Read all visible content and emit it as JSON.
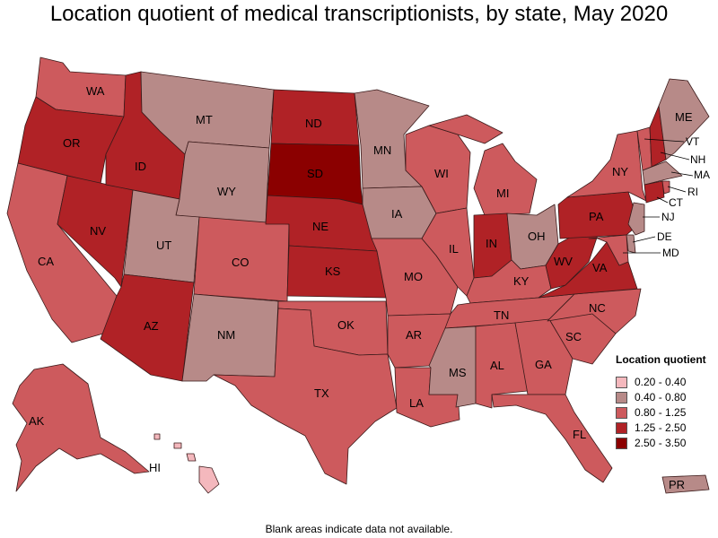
{
  "title": "Location quotient of medical transcriptionists, by state, May 2020",
  "footnote": "Blank areas indicate data not available.",
  "colors": {
    "c1": "#f4b8bd",
    "c2": "#b78a88",
    "c3": "#cd5a5d",
    "c4": "#b02226",
    "c5": "#8b0000"
  },
  "legend": {
    "title": "Location quotient",
    "bins": [
      {
        "label": "0.20 - 0.40",
        "color": "#f4b8bd"
      },
      {
        "label": "0.40 - 0.80",
        "color": "#b78a88"
      },
      {
        "label": "0.80 - 1.25",
        "color": "#cd5a5d"
      },
      {
        "label": "1.25 - 2.50",
        "color": "#b02226"
      },
      {
        "label": "2.50 - 3.50",
        "color": "#8b0000"
      }
    ]
  },
  "states": {
    "WA": {
      "label": "WA",
      "bin": "0.80 - 1.25"
    },
    "OR": {
      "label": "OR",
      "bin": "1.25 - 2.50"
    },
    "CA": {
      "label": "CA",
      "bin": "0.80 - 1.25"
    },
    "NV": {
      "label": "NV",
      "bin": "1.25 - 2.50"
    },
    "ID": {
      "label": "ID",
      "bin": "1.25 - 2.50"
    },
    "MT": {
      "label": "MT",
      "bin": "0.40 - 0.80"
    },
    "WY": {
      "label": "WY",
      "bin": "0.40 - 0.80"
    },
    "UT": {
      "label": "UT",
      "bin": "0.40 - 0.80"
    },
    "AZ": {
      "label": "AZ",
      "bin": "1.25 - 2.50"
    },
    "CO": {
      "label": "CO",
      "bin": "0.80 - 1.25"
    },
    "NM": {
      "label": "NM",
      "bin": "0.40 - 0.80"
    },
    "ND": {
      "label": "ND",
      "bin": "1.25 - 2.50"
    },
    "SD": {
      "label": "SD",
      "bin": "2.50 - 3.50"
    },
    "NE": {
      "label": "NE",
      "bin": "1.25 - 2.50"
    },
    "KS": {
      "label": "KS",
      "bin": "1.25 - 2.50"
    },
    "OK": {
      "label": "OK",
      "bin": "0.80 - 1.25"
    },
    "TX": {
      "label": "TX",
      "bin": "0.80 - 1.25"
    },
    "MN": {
      "label": "MN",
      "bin": "0.40 - 0.80"
    },
    "IA": {
      "label": "IA",
      "bin": "0.40 - 0.80"
    },
    "MO": {
      "label": "MO",
      "bin": "0.80 - 1.25"
    },
    "AR": {
      "label": "AR",
      "bin": "0.80 - 1.25"
    },
    "LA": {
      "label": "LA",
      "bin": "0.80 - 1.25"
    },
    "WI": {
      "label": "WI",
      "bin": "0.80 - 1.25"
    },
    "IL": {
      "label": "IL",
      "bin": "0.80 - 1.25"
    },
    "MI": {
      "label": "MI",
      "bin": "0.80 - 1.25"
    },
    "IN": {
      "label": "IN",
      "bin": "1.25 - 2.50"
    },
    "OH": {
      "label": "OH",
      "bin": "0.40 - 0.80"
    },
    "KY": {
      "label": "KY",
      "bin": "0.80 - 1.25"
    },
    "TN": {
      "label": "TN",
      "bin": "0.80 - 1.25"
    },
    "MS": {
      "label": "MS",
      "bin": "0.40 - 0.80"
    },
    "AL": {
      "label": "AL",
      "bin": "0.80 - 1.25"
    },
    "GA": {
      "label": "GA",
      "bin": "0.80 - 1.25"
    },
    "FL": {
      "label": "FL",
      "bin": "0.80 - 1.25"
    },
    "SC": {
      "label": "SC",
      "bin": "0.80 - 1.25"
    },
    "NC": {
      "label": "NC",
      "bin": "0.80 - 1.25"
    },
    "VA": {
      "label": "VA",
      "bin": "1.25 - 2.50"
    },
    "WV": {
      "label": "WV",
      "bin": "1.25 - 2.50"
    },
    "PA": {
      "label": "PA",
      "bin": "1.25 - 2.50"
    },
    "NY": {
      "label": "NY",
      "bin": "0.80 - 1.25"
    },
    "VT": {
      "label": "VT",
      "bin": "0.80 - 1.25"
    },
    "NH": {
      "label": "NH",
      "bin": "1.25 - 2.50"
    },
    "ME": {
      "label": "ME",
      "bin": "0.40 - 0.80"
    },
    "MA": {
      "label": "MA",
      "bin": "0.40 - 0.80"
    },
    "RI": {
      "label": "RI",
      "bin": "0.80 - 1.25"
    },
    "CT": {
      "label": "CT",
      "bin": "1.25 - 2.50"
    },
    "NJ": {
      "label": "NJ",
      "bin": "0.40 - 0.80"
    },
    "DE": {
      "label": "DE",
      "bin": "0.40 - 0.80"
    },
    "MD": {
      "label": "MD",
      "bin": "0.80 - 1.25"
    },
    "AK": {
      "label": "AK",
      "bin": "0.80 - 1.25"
    },
    "HI": {
      "label": "HI",
      "bin": "0.20 - 0.40"
    },
    "PR": {
      "label": "PR",
      "bin": "0.40 - 0.80"
    }
  }
}
